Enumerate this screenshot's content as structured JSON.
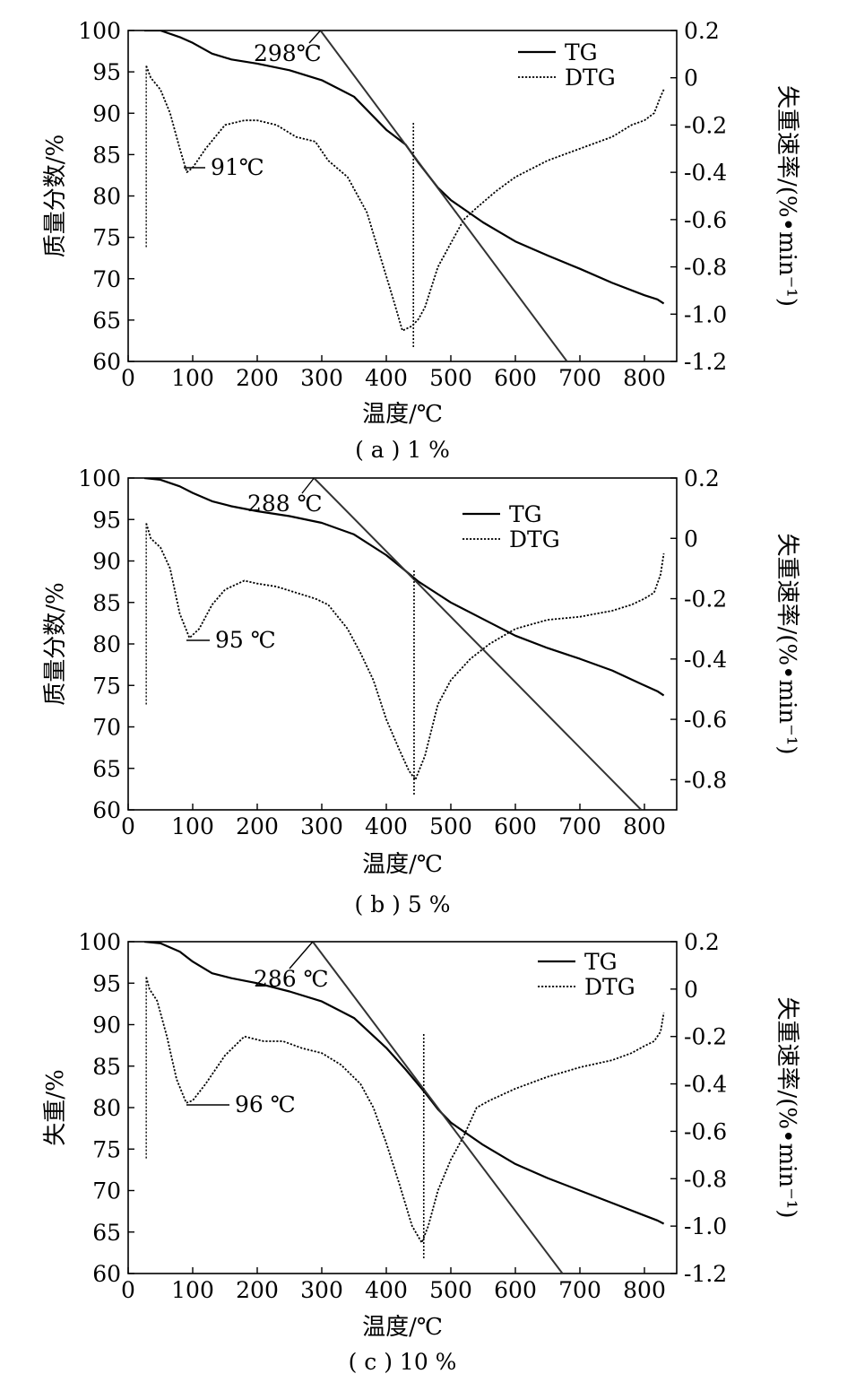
{
  "chart_data": [
    {
      "type": "line",
      "caption": "( a ) 1 %",
      "xlabel": "温度/℃",
      "ylabel_left": "质量分数/%",
      "ylabel_right": "失重速率/(%•min⁻¹)",
      "xlim": [
        0,
        850
      ],
      "xticks": [
        "0",
        "100",
        "200",
        "300",
        "400",
        "500",
        "600",
        "700",
        "800"
      ],
      "ylim_left": [
        60,
        100
      ],
      "yticks_left": [
        "60",
        "65",
        "70",
        "75",
        "80",
        "85",
        "90",
        "95",
        "100"
      ],
      "ylim_right": [
        -1.2,
        0.2
      ],
      "yticks_right": [
        "-1.2",
        "-1.0",
        "-0.8",
        "-0.6",
        "-0.4",
        "-0.2",
        "0",
        "0.2"
      ],
      "legend": {
        "position": "top-right",
        "entries": [
          "TG",
          "DTG"
        ]
      },
      "annotations": {
        "onset": "298℃",
        "dtg_peak": "91℃"
      },
      "tangent": {
        "x1": 298,
        "y1": 100,
        "x2": 680,
        "y2": 60
      },
      "inflection_x": 442,
      "series": [
        {
          "name": "TG",
          "axis": "left",
          "style": "solid",
          "x": [
            25,
            50,
            80,
            100,
            130,
            160,
            200,
            250,
            300,
            350,
            400,
            430,
            450,
            480,
            500,
            550,
            600,
            650,
            700,
            750,
            800,
            820,
            830
          ],
          "y": [
            100,
            100,
            99.2,
            98.5,
            97.2,
            96.5,
            96.0,
            95.2,
            94.0,
            92.0,
            88.0,
            86.2,
            84.0,
            81.0,
            79.5,
            76.8,
            74.5,
            72.8,
            71.2,
            69.5,
            68.0,
            67.5,
            67.0
          ]
        },
        {
          "name": "DTG",
          "axis": "right",
          "style": "dotted",
          "x": [
            28,
            35,
            50,
            65,
            80,
            91,
            100,
            120,
            150,
            180,
            200,
            230,
            260,
            290,
            310,
            340,
            370,
            390,
            410,
            425,
            440,
            450,
            460,
            480,
            500,
            520,
            540,
            570,
            600,
            650,
            700,
            750,
            780,
            800,
            815,
            825,
            830
          ],
          "y": [
            0.05,
            0.0,
            -0.05,
            -0.15,
            -0.3,
            -0.4,
            -0.38,
            -0.3,
            -0.2,
            -0.18,
            -0.18,
            -0.2,
            -0.25,
            -0.27,
            -0.35,
            -0.42,
            -0.57,
            -0.75,
            -0.93,
            -1.07,
            -1.05,
            -1.02,
            -0.97,
            -0.8,
            -0.7,
            -0.6,
            -0.55,
            -0.48,
            -0.42,
            -0.35,
            -0.3,
            -0.25,
            -0.2,
            -0.18,
            -0.15,
            -0.08,
            -0.05
          ]
        }
      ]
    },
    {
      "type": "line",
      "caption": "( b ) 5 %",
      "xlabel": "温度/℃",
      "ylabel_left": "质量分数/%",
      "ylabel_right": "失重速率/(%•min⁻¹)",
      "xlim": [
        0,
        850
      ],
      "xticks": [
        "0",
        "100",
        "200",
        "300",
        "400",
        "500",
        "600",
        "700",
        "800"
      ],
      "ylim_left": [
        60,
        100
      ],
      "yticks_left": [
        "60",
        "65",
        "70",
        "75",
        "80",
        "85",
        "90",
        "95",
        "100"
      ],
      "ylim_right": [
        -0.9,
        0.2
      ],
      "yticks_right": [
        "-0.8",
        "-0.6",
        "-0.4",
        "-0.2",
        "0",
        "0.2"
      ],
      "legend": {
        "position": "top-right",
        "entries": [
          "TG",
          "DTG"
        ]
      },
      "annotations": {
        "onset": "288 ℃",
        "dtg_peak": "95 ℃"
      },
      "tangent": {
        "x1": 288,
        "y1": 100,
        "x2": 795,
        "y2": 60
      },
      "inflection_x": 443,
      "series": [
        {
          "name": "TG",
          "axis": "left",
          "style": "solid",
          "x": [
            25,
            50,
            80,
            100,
            130,
            160,
            200,
            250,
            300,
            350,
            400,
            430,
            450,
            480,
            500,
            550,
            600,
            650,
            700,
            750,
            800,
            820,
            830
          ],
          "y": [
            100,
            99.8,
            99.0,
            98.2,
            97.2,
            96.6,
            96.0,
            95.4,
            94.6,
            93.2,
            90.7,
            88.8,
            87.5,
            86.0,
            85.0,
            83.0,
            81.0,
            79.5,
            78.2,
            76.8,
            75.0,
            74.3,
            73.8
          ]
        },
        {
          "name": "DTG",
          "axis": "right",
          "style": "dotted",
          "x": [
            28,
            35,
            50,
            65,
            80,
            95,
            110,
            130,
            150,
            180,
            200,
            230,
            260,
            290,
            310,
            340,
            360,
            380,
            400,
            420,
            435,
            445,
            460,
            480,
            500,
            530,
            560,
            600,
            650,
            700,
            750,
            780,
            800,
            815,
            825,
            830
          ],
          "y": [
            0.05,
            0.0,
            -0.03,
            -0.1,
            -0.25,
            -0.33,
            -0.3,
            -0.22,
            -0.17,
            -0.14,
            -0.15,
            -0.16,
            -0.18,
            -0.2,
            -0.22,
            -0.3,
            -0.38,
            -0.47,
            -0.6,
            -0.7,
            -0.77,
            -0.8,
            -0.72,
            -0.55,
            -0.47,
            -0.4,
            -0.35,
            -0.3,
            -0.27,
            -0.26,
            -0.24,
            -0.22,
            -0.2,
            -0.18,
            -0.12,
            -0.05
          ]
        }
      ]
    },
    {
      "type": "line",
      "caption": "( c ) 10 %",
      "xlabel": "温度/℃",
      "ylabel_left": "失重/%",
      "ylabel_right": "失重速率/(%•min⁻¹)",
      "xlim": [
        0,
        850
      ],
      "xticks": [
        "0",
        "100",
        "200",
        "300",
        "400",
        "500",
        "600",
        "700",
        "800"
      ],
      "ylim_left": [
        60,
        100
      ],
      "yticks_left": [
        "60",
        "65",
        "70",
        "75",
        "80",
        "85",
        "90",
        "95",
        "100"
      ],
      "ylim_right": [
        -1.2,
        0.2
      ],
      "yticks_right": [
        "-1.2",
        "-1.0",
        "-0.8",
        "-0.6",
        "-0.4",
        "-0.2",
        "0",
        "0.2"
      ],
      "legend": {
        "position": "top-right",
        "entries": [
          "TG",
          "DTG"
        ]
      },
      "annotations": {
        "onset": "286 ℃",
        "dtg_peak": "96 ℃"
      },
      "tangent": {
        "x1": 286,
        "y1": 100,
        "x2": 673,
        "y2": 60
      },
      "inflection_x": 458,
      "series": [
        {
          "name": "TG",
          "axis": "left",
          "style": "solid",
          "x": [
            25,
            50,
            80,
            100,
            130,
            160,
            200,
            250,
            300,
            350,
            400,
            430,
            460,
            480,
            500,
            550,
            600,
            650,
            700,
            750,
            800,
            820,
            830
          ],
          "y": [
            100,
            99.8,
            98.8,
            97.6,
            96.2,
            95.6,
            95.0,
            94.0,
            92.8,
            90.8,
            87.2,
            84.6,
            81.8,
            79.8,
            78.2,
            75.5,
            73.2,
            71.5,
            70.0,
            68.5,
            67.0,
            66.4,
            66.0
          ]
        },
        {
          "name": "DTG",
          "axis": "right",
          "style": "dotted",
          "x": [
            28,
            33,
            45,
            60,
            75,
            90,
            100,
            120,
            150,
            180,
            210,
            240,
            270,
            300,
            330,
            360,
            380,
            400,
            420,
            440,
            455,
            465,
            480,
            500,
            520,
            540,
            560,
            600,
            650,
            700,
            750,
            780,
            800,
            815,
            825,
            830
          ],
          "y": [
            0.05,
            0.0,
            -0.05,
            -0.2,
            -0.38,
            -0.48,
            -0.47,
            -0.4,
            -0.28,
            -0.2,
            -0.22,
            -0.22,
            -0.25,
            -0.27,
            -0.32,
            -0.4,
            -0.5,
            -0.65,
            -0.82,
            -1.0,
            -1.07,
            -1.0,
            -0.85,
            -0.72,
            -0.62,
            -0.5,
            -0.47,
            -0.42,
            -0.37,
            -0.33,
            -0.3,
            -0.27,
            -0.24,
            -0.22,
            -0.18,
            -0.1
          ]
        }
      ]
    }
  ]
}
